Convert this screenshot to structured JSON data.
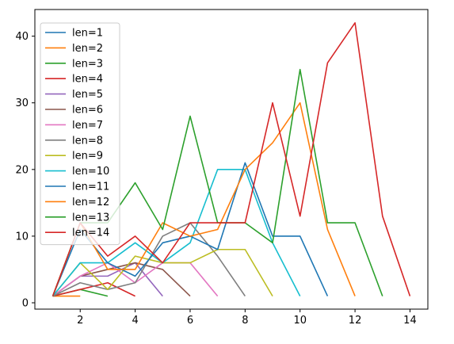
{
  "chart_data": {
    "type": "line",
    "title": "",
    "xlabel": "",
    "ylabel": "",
    "xlim": [
      0.35,
      14.65
    ],
    "ylim": [
      -0.95,
      44.0
    ],
    "xticks": [
      2,
      4,
      6,
      8,
      10,
      12,
      14
    ],
    "yticks": [
      0,
      10,
      20,
      30,
      40
    ],
    "grid": false,
    "legend_position": "top-left",
    "series": [
      {
        "name": "len=1",
        "color": "#1f77b4",
        "x": [
          1
        ],
        "y": [
          1
        ]
      },
      {
        "name": "len=2",
        "color": "#ff7f0e",
        "x": [
          1,
          2
        ],
        "y": [
          1,
          1
        ]
      },
      {
        "name": "len=3",
        "color": "#2ca02c",
        "x": [
          1,
          2,
          3
        ],
        "y": [
          1,
          2,
          1
        ]
      },
      {
        "name": "len=4",
        "color": "#d62728",
        "x": [
          1,
          2,
          3,
          4
        ],
        "y": [
          1,
          2,
          3,
          1
        ]
      },
      {
        "name": "len=5",
        "color": "#9467bd",
        "x": [
          1,
          2,
          3,
          4,
          5
        ],
        "y": [
          1,
          4,
          4,
          6,
          1
        ]
      },
      {
        "name": "len=6",
        "color": "#8c564b",
        "x": [
          1,
          2,
          3,
          4,
          5,
          6
        ],
        "y": [
          1,
          4,
          5,
          6,
          5,
          1
        ]
      },
      {
        "name": "len=7",
        "color": "#e377c2",
        "x": [
          1,
          2,
          3,
          4,
          5,
          6,
          7
        ],
        "y": [
          1,
          4,
          6,
          3,
          6,
          6,
          1
        ]
      },
      {
        "name": "len=8",
        "color": "#7f7f7f",
        "x": [
          1,
          2,
          3,
          4,
          5,
          6,
          7,
          8
        ],
        "y": [
          1,
          3,
          2,
          3,
          10,
          12,
          7,
          1
        ]
      },
      {
        "name": "len=9",
        "color": "#bcbd22",
        "x": [
          1,
          2,
          3,
          4,
          5,
          6,
          7,
          8,
          9
        ],
        "y": [
          1,
          6,
          2,
          7,
          6,
          6,
          8,
          8,
          1
        ]
      },
      {
        "name": "len=10",
        "color": "#17becf",
        "x": [
          1,
          2,
          3,
          4,
          5,
          6,
          7,
          8,
          9,
          10
        ],
        "y": [
          1,
          6,
          6,
          9,
          6,
          9,
          20,
          20,
          9,
          1
        ]
      },
      {
        "name": "len=11",
        "color": "#1f77b4",
        "x": [
          1,
          2,
          3,
          4,
          5,
          6,
          7,
          8,
          9,
          10,
          11
        ],
        "y": [
          1,
          11,
          6,
          4,
          9,
          10,
          8,
          21,
          10,
          10,
          1
        ]
      },
      {
        "name": "len=12",
        "color": "#ff7f0e",
        "x": [
          1,
          2,
          3,
          4,
          5,
          6,
          7,
          8,
          9,
          10,
          11,
          12
        ],
        "y": [
          1,
          12,
          5,
          5,
          12,
          10,
          11,
          20,
          24,
          30,
          11,
          1
        ]
      },
      {
        "name": "len=13",
        "color": "#2ca02c",
        "x": [
          1,
          2,
          3,
          4,
          5,
          6,
          7,
          8,
          9,
          10,
          11,
          12,
          13
        ],
        "y": [
          1,
          12,
          12,
          18,
          11,
          28,
          12,
          12,
          9,
          35,
          12,
          12,
          1
        ]
      },
      {
        "name": "len=14",
        "color": "#d62728",
        "x": [
          1,
          2,
          3,
          4,
          5,
          6,
          7,
          8,
          9,
          10,
          11,
          12,
          13,
          14
        ],
        "y": [
          1,
          12,
          7,
          10,
          6,
          12,
          12,
          12,
          30,
          13,
          36,
          42,
          13,
          1
        ]
      }
    ]
  }
}
